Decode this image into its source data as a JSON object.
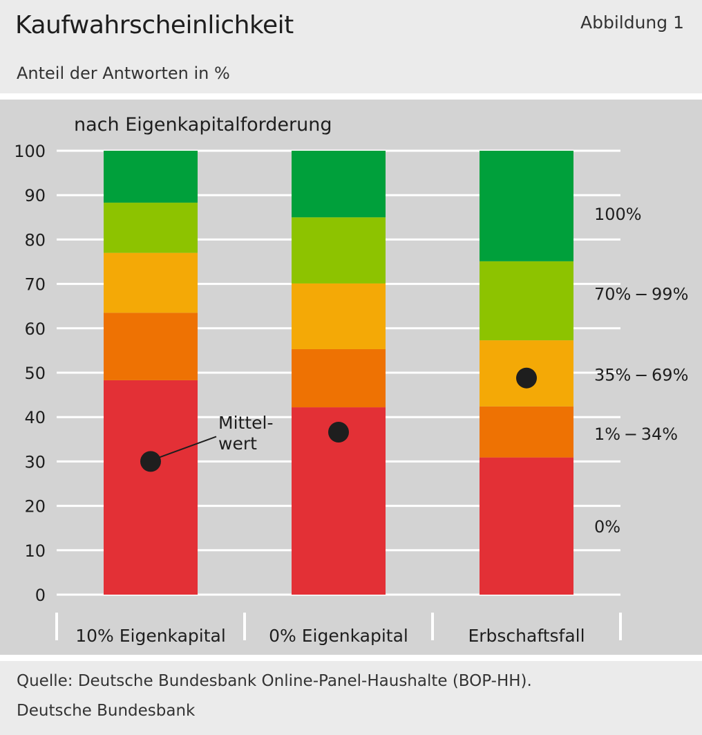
{
  "header": {
    "title": "Kaufwahrscheinlichkeit",
    "figure_label": "Abbildung 1",
    "subtitle": "Anteil der Antworten in %"
  },
  "footer": {
    "source": "Quelle: Deutsche Bundesbank Online-Panel-Haushalte (BOP-HH).",
    "publisher": "Deutsche Bundesbank"
  },
  "chart_data": {
    "type": "bar",
    "stacked": true,
    "title": "nach Eigenkapitalforderung",
    "categories": [
      "10% Eigenkapital",
      "0% Eigenkapital",
      "Erbschaftsfall"
    ],
    "ylim": [
      0,
      100
    ],
    "yticks": [
      0,
      10,
      20,
      30,
      40,
      50,
      60,
      70,
      80,
      90,
      100
    ],
    "grid": true,
    "legend_position": "right",
    "series": [
      {
        "name": "0%",
        "color": "#e33036",
        "values": [
          48.3,
          42.2,
          30.9
        ]
      },
      {
        "name": "1% − 34%",
        "color": "#ee7203",
        "values": [
          15.2,
          13.1,
          11.5
        ]
      },
      {
        "name": "35% − 69%",
        "color": "#f4a906",
        "values": [
          13.5,
          14.8,
          14.9
        ]
      },
      {
        "name": "70% − 99%",
        "color": "#8dc300",
        "values": [
          11.3,
          14.9,
          17.8
        ]
      },
      {
        "name": "100%",
        "color": "#00a03b",
        "values": [
          11.7,
          15.0,
          24.9
        ]
      }
    ],
    "mean": {
      "label": "Mittel-\nwert",
      "values": [
        30.0,
        36.6,
        48.8
      ],
      "color": "#1e1e1e"
    }
  }
}
